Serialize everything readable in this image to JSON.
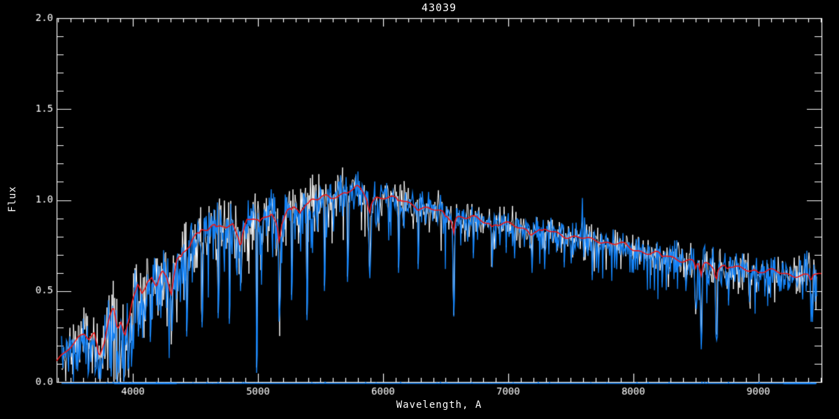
{
  "chart_data": {
    "type": "line",
    "title": "43039",
    "xlabel": "Wavelength, A",
    "ylabel": "Flux",
    "xlim": [
      3390,
      9505
    ],
    "ylim": [
      0.0,
      2.0
    ],
    "xticks": [
      {
        "v": 4000,
        "label": "4000"
      },
      {
        "v": 5000,
        "label": "5000"
      },
      {
        "v": 6000,
        "label": "6000"
      },
      {
        "v": 7000,
        "label": "7000"
      },
      {
        "v": 8000,
        "label": "8000"
      },
      {
        "v": 9000,
        "label": "9000"
      }
    ],
    "yticks": [
      {
        "v": 0.0,
        "label": "0.0"
      },
      {
        "v": 0.5,
        "label": "0.5"
      },
      {
        "v": 1.0,
        "label": "1.0"
      },
      {
        "v": 1.5,
        "label": "1.5"
      },
      {
        "v": 2.0,
        "label": "2.0"
      }
    ],
    "x_minor_step": 100,
    "y_minor_step": 0.1,
    "grid": false,
    "legend": null,
    "colors": {
      "background": "#000000",
      "axis": "#ffffff",
      "observed_white": "#ffffff",
      "observed_blue": "#1482f5",
      "template_red": "#ee1414"
    },
    "series": [
      {
        "name": "observed-spectrum-white",
        "type": "noisy-line"
      },
      {
        "name": "observed-spectrum-blue",
        "type": "noisy-line"
      },
      {
        "name": "error-spectrum-zero-line",
        "type": "line",
        "flux": 0.0
      },
      {
        "name": "template-fit-red",
        "type": "smooth-line"
      }
    ],
    "data_range": [
      3428,
      9465
    ],
    "continuum": [
      [
        3390,
        0.11
      ],
      [
        3450,
        0.15
      ],
      [
        3510,
        0.21
      ],
      [
        3560,
        0.25
      ],
      [
        3610,
        0.27
      ],
      [
        3650,
        0.23
      ],
      [
        3690,
        0.26
      ],
      [
        3730,
        0.13
      ],
      [
        3770,
        0.22
      ],
      [
        3810,
        0.36
      ],
      [
        3845,
        0.42
      ],
      [
        3875,
        0.3
      ],
      [
        3905,
        0.34
      ],
      [
        3935,
        0.26
      ],
      [
        3965,
        0.33
      ],
      [
        4000,
        0.45
      ],
      [
        4040,
        0.54
      ],
      [
        4075,
        0.48
      ],
      [
        4110,
        0.55
      ],
      [
        4150,
        0.59
      ],
      [
        4190,
        0.53
      ],
      [
        4230,
        0.61
      ],
      [
        4270,
        0.57
      ],
      [
        4305,
        0.49
      ],
      [
        4350,
        0.66
      ],
      [
        4400,
        0.72
      ],
      [
        4450,
        0.76
      ],
      [
        4500,
        0.81
      ],
      [
        4550,
        0.84
      ],
      [
        4600,
        0.82
      ],
      [
        4650,
        0.86
      ],
      [
        4700,
        0.87
      ],
      [
        4750,
        0.85
      ],
      [
        4800,
        0.88
      ],
      [
        4860,
        0.76
      ],
      [
        4910,
        0.88
      ],
      [
        4960,
        0.9
      ],
      [
        5010,
        0.89
      ],
      [
        5060,
        0.92
      ],
      [
        5110,
        0.93
      ],
      [
        5170,
        0.82
      ],
      [
        5230,
        0.94
      ],
      [
        5280,
        0.96
      ],
      [
        5330,
        0.95
      ],
      [
        5380,
        0.98
      ],
      [
        5430,
        1.0
      ],
      [
        5480,
        1.0
      ],
      [
        5530,
        1.02
      ],
      [
        5580,
        1.01
      ],
      [
        5630,
        1.03
      ],
      [
        5680,
        1.04
      ],
      [
        5730,
        1.05
      ],
      [
        5790,
        1.07
      ],
      [
        5845,
        1.03
      ],
      [
        5895,
        0.98
      ],
      [
        5945,
        1.02
      ],
      [
        6000,
        1.02
      ],
      [
        6060,
        1.01
      ],
      [
        6120,
        1.0
      ],
      [
        6180,
        0.99
      ],
      [
        6240,
        0.98
      ],
      [
        6300,
        0.96
      ],
      [
        6360,
        0.95
      ],
      [
        6420,
        0.94
      ],
      [
        6480,
        0.93
      ],
      [
        6545,
        0.9
      ],
      [
        6600,
        0.91
      ],
      [
        6660,
        0.9
      ],
      [
        6720,
        0.9
      ],
      [
        6780,
        0.89
      ],
      [
        6840,
        0.88
      ],
      [
        6900,
        0.87
      ],
      [
        6960,
        0.87
      ],
      [
        7020,
        0.86
      ],
      [
        7090,
        0.85
      ],
      [
        7160,
        0.84
      ],
      [
        7230,
        0.83
      ],
      [
        7300,
        0.83
      ],
      [
        7370,
        0.82
      ],
      [
        7440,
        0.81
      ],
      [
        7510,
        0.8
      ],
      [
        7580,
        0.79
      ],
      [
        7650,
        0.78
      ],
      [
        7720,
        0.78
      ],
      [
        7790,
        0.77
      ],
      [
        7860,
        0.76
      ],
      [
        7930,
        0.75
      ],
      [
        8000,
        0.73
      ],
      [
        8070,
        0.72
      ],
      [
        8140,
        0.71
      ],
      [
        8210,
        0.7
      ],
      [
        8280,
        0.69
      ],
      [
        8350,
        0.68
      ],
      [
        8420,
        0.67
      ],
      [
        8490,
        0.66
      ],
      [
        8545,
        0.64
      ],
      [
        8605,
        0.65
      ],
      [
        8665,
        0.63
      ],
      [
        8725,
        0.64
      ],
      [
        8785,
        0.63
      ],
      [
        8845,
        0.62
      ],
      [
        8905,
        0.62
      ],
      [
        8965,
        0.62
      ],
      [
        9025,
        0.61
      ],
      [
        9085,
        0.61
      ],
      [
        9145,
        0.6
      ],
      [
        9205,
        0.6
      ],
      [
        9265,
        0.59
      ],
      [
        9325,
        0.59
      ],
      [
        9385,
        0.58
      ],
      [
        9445,
        0.59
      ],
      [
        9505,
        0.59
      ]
    ],
    "noise_sigma": [
      [
        3390,
        0.05
      ],
      [
        3500,
        0.06
      ],
      [
        3600,
        0.065
      ],
      [
        3700,
        0.07
      ],
      [
        3800,
        0.08
      ],
      [
        3900,
        0.085
      ],
      [
        4000,
        0.085
      ],
      [
        4100,
        0.08
      ],
      [
        4300,
        0.08
      ],
      [
        4500,
        0.07
      ],
      [
        4700,
        0.065
      ],
      [
        4900,
        0.06
      ],
      [
        5100,
        0.055
      ],
      [
        5300,
        0.05
      ],
      [
        5500,
        0.05
      ],
      [
        5800,
        0.045
      ],
      [
        6000,
        0.04
      ],
      [
        6300,
        0.035
      ],
      [
        6563,
        0.035
      ],
      [
        6800,
        0.03
      ],
      [
        7000,
        0.03
      ],
      [
        7300,
        0.03
      ],
      [
        7600,
        0.035
      ],
      [
        7900,
        0.03
      ],
      [
        8100,
        0.035
      ],
      [
        8400,
        0.04
      ],
      [
        8700,
        0.04
      ],
      [
        9000,
        0.035
      ],
      [
        9200,
        0.04
      ],
      [
        9350,
        0.05
      ],
      [
        9465,
        0.06
      ]
    ],
    "absorption_lines": [
      [
        3933,
        0.1,
        8
      ],
      [
        3968,
        0.09,
        7
      ],
      [
        4101,
        0.1,
        7
      ],
      [
        4227,
        0.07,
        5
      ],
      [
        4305,
        0.12,
        10
      ],
      [
        4383,
        0.09,
        5
      ],
      [
        4455,
        0.07,
        5
      ],
      [
        4531,
        0.07,
        5
      ],
      [
        4668,
        0.07,
        5
      ],
      [
        4861,
        0.2,
        7
      ],
      [
        5015,
        0.07,
        5
      ],
      [
        5170,
        0.44,
        7
      ],
      [
        5270,
        0.1,
        6
      ],
      [
        5335,
        0.07,
        5
      ],
      [
        5406,
        0.06,
        4
      ],
      [
        5530,
        0.07,
        4
      ],
      [
        5710,
        0.06,
        4
      ],
      [
        5890,
        0.33,
        7
      ],
      [
        6122,
        0.08,
        5
      ],
      [
        6280,
        0.08,
        5
      ],
      [
        6495,
        0.07,
        5
      ],
      [
        6563,
        0.5,
        6
      ],
      [
        6870,
        0.12,
        10
      ],
      [
        7180,
        0.1,
        12
      ],
      [
        7270,
        0.07,
        8
      ],
      [
        8230,
        0.09,
        10
      ],
      [
        8498,
        0.24,
        6
      ],
      [
        8542,
        0.42,
        7
      ],
      [
        8662,
        0.37,
        7
      ],
      [
        8750,
        0.1,
        6
      ],
      [
        9000,
        0.06,
        8
      ],
      [
        9420,
        0.22,
        8
      ]
    ],
    "emission_spikes": [
      [
        7592,
        0.16,
        5
      ],
      [
        7612,
        0.11,
        4
      ],
      [
        7630,
        0.07,
        3
      ],
      [
        9395,
        0.05,
        6
      ],
      [
        9440,
        0.06,
        4
      ]
    ],
    "deep_spikes": [
      [
        3560,
        0.06
      ],
      [
        3640,
        0.04
      ],
      [
        3700,
        0.05
      ],
      [
        3828,
        0.03
      ],
      [
        3890,
        0.05
      ],
      [
        3968,
        0.08
      ],
      [
        4045,
        0.25
      ],
      [
        4140,
        0.22
      ],
      [
        4310,
        0.28
      ],
      [
        4430,
        0.25
      ],
      [
        4550,
        0.3
      ],
      [
        4680,
        0.35
      ],
      [
        4770,
        0.32
      ],
      [
        4862,
        0.5
      ],
      [
        4990,
        0.05
      ],
      [
        5172,
        0.37
      ],
      [
        5268,
        0.45
      ],
      [
        5390,
        0.34
      ],
      [
        5530,
        0.5
      ],
      [
        5715,
        0.55
      ],
      [
        5892,
        0.57
      ],
      [
        6125,
        0.6
      ],
      [
        6280,
        0.62
      ],
      [
        6565,
        0.36
      ],
      [
        6720,
        0.68
      ],
      [
        6875,
        0.63
      ],
      [
        7050,
        0.68
      ],
      [
        7190,
        0.6
      ],
      [
        7290,
        0.62
      ],
      [
        7450,
        0.63
      ],
      [
        7670,
        0.56
      ],
      [
        7720,
        0.6
      ],
      [
        7870,
        0.62
      ],
      [
        8000,
        0.6
      ],
      [
        8230,
        0.52
      ],
      [
        8420,
        0.5
      ],
      [
        8502,
        0.4
      ],
      [
        8545,
        0.18
      ],
      [
        8665,
        0.23
      ],
      [
        8760,
        0.42
      ],
      [
        8930,
        0.44
      ],
      [
        9050,
        0.47
      ],
      [
        9180,
        0.5
      ],
      [
        9430,
        0.33
      ]
    ],
    "forest": [
      [
        3428,
        3800,
        0.3,
        0.18
      ],
      [
        3800,
        4600,
        0.32,
        0.3
      ],
      [
        4600,
        5600,
        0.22,
        0.28
      ],
      [
        5600,
        6600,
        0.18,
        0.22
      ],
      [
        6600,
        7500,
        0.12,
        0.15
      ],
      [
        7500,
        8100,
        0.15,
        0.18
      ],
      [
        8100,
        9100,
        0.18,
        0.22
      ],
      [
        9100,
        9465,
        0.12,
        0.12
      ]
    ],
    "zero_line_bump_ranges": [
      [
        3850,
        4350
      ],
      [
        9200,
        9460
      ]
    ],
    "seed": 43039
  }
}
